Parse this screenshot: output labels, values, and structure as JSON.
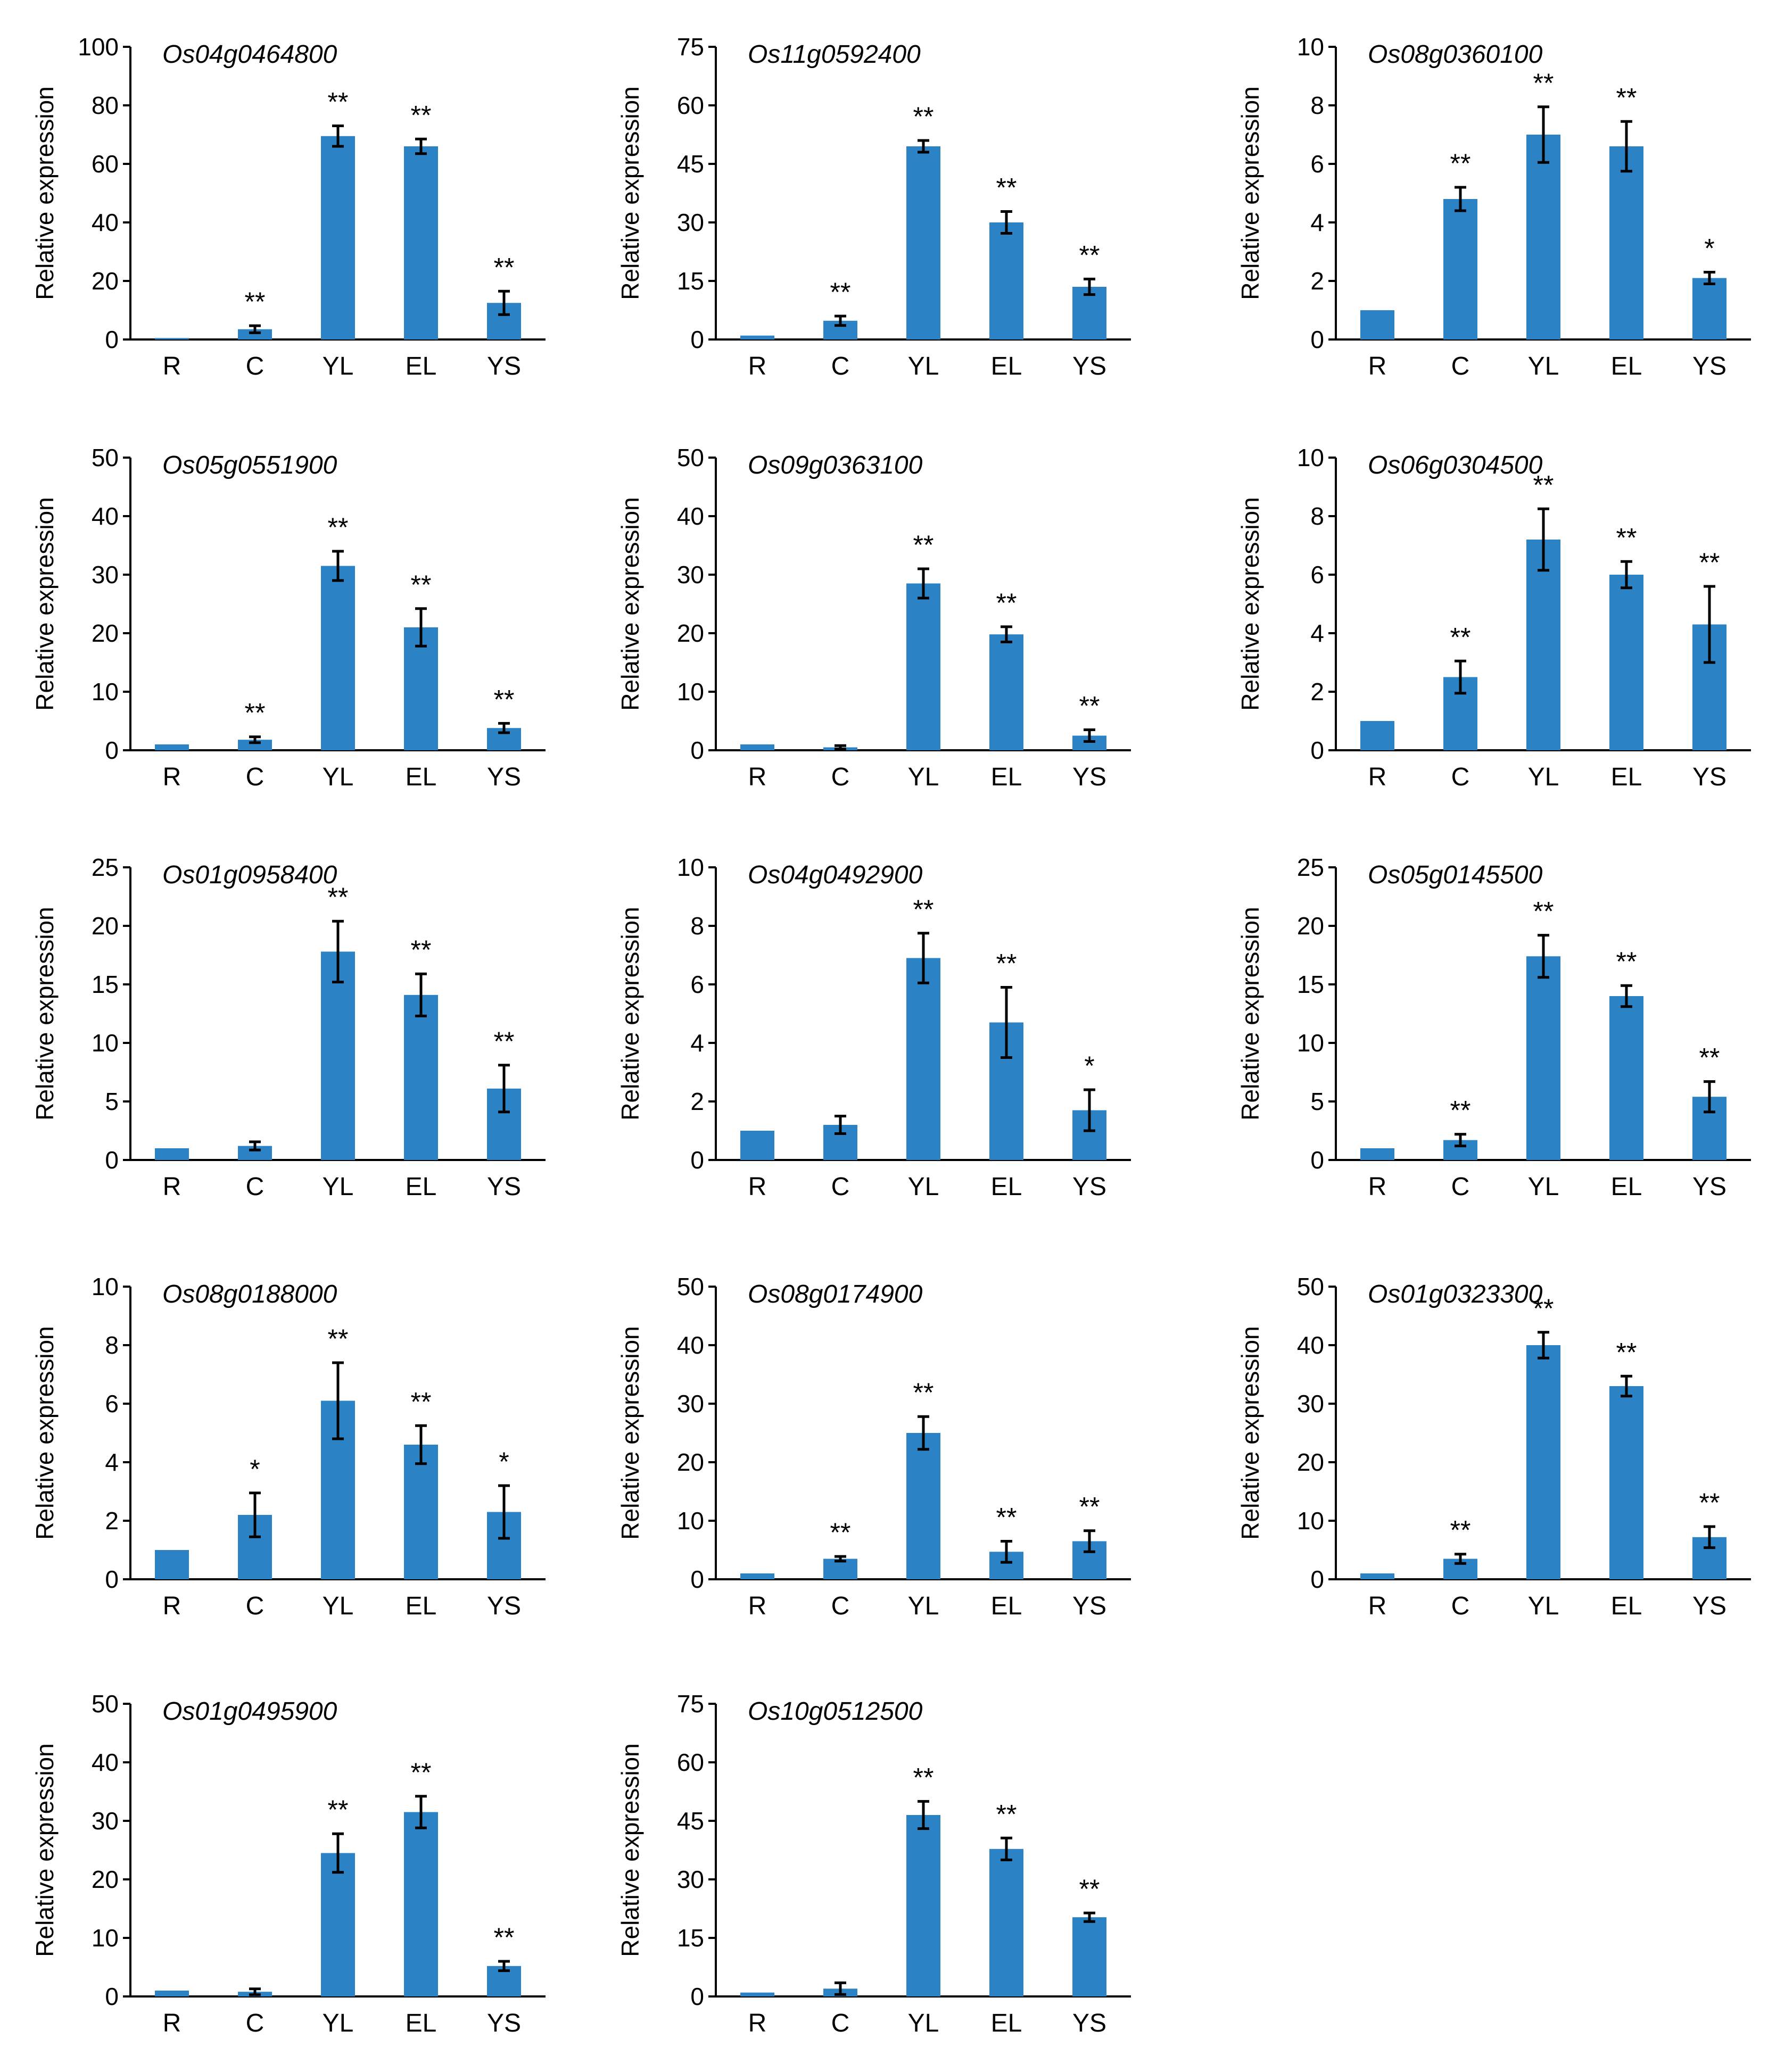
{
  "figure": {
    "y_axis_label": "Relative expression",
    "categories": [
      "R",
      "C",
      "YL",
      "EL",
      "YS"
    ],
    "bar_color": "#2b83c6",
    "axis_color": "#000000"
  },
  "chart_data": [
    {
      "type": "bar",
      "title": "Os04g0464800",
      "ylabel": "Relative expression",
      "categories": [
        "R",
        "C",
        "YL",
        "EL",
        "YS"
      ],
      "ylim": [
        0,
        100
      ],
      "yticks": [
        0,
        20,
        40,
        60,
        80,
        100
      ],
      "values": [
        0.5,
        3.5,
        69.5,
        66,
        12.5
      ],
      "errors": [
        0,
        1.2,
        3.5,
        2.5,
        4
      ],
      "significance": [
        "",
        "**",
        "**",
        "**",
        "**"
      ]
    },
    {
      "type": "bar",
      "title": "Os11g0592400",
      "ylabel": "Relative expression",
      "categories": [
        "R",
        "C",
        "YL",
        "EL",
        "YS"
      ],
      "ylim": [
        0,
        75
      ],
      "yticks": [
        0,
        15,
        30,
        45,
        60,
        75
      ],
      "values": [
        1,
        4.8,
        49.5,
        30,
        13.5
      ],
      "errors": [
        0,
        1.2,
        1.5,
        2.8,
        2
      ],
      "significance": [
        "",
        "**",
        "**",
        "**",
        "**"
      ]
    },
    {
      "type": "bar",
      "title": "Os08g0360100",
      "ylabel": "Relative expression",
      "categories": [
        "R",
        "C",
        "YL",
        "EL",
        "YS"
      ],
      "ylim": [
        0,
        10
      ],
      "yticks": [
        0,
        2,
        4,
        6,
        8,
        10
      ],
      "values": [
        1,
        4.8,
        7,
        6.6,
        2.1
      ],
      "errors": [
        0,
        0.4,
        0.95,
        0.85,
        0.2
      ],
      "significance": [
        "",
        "**",
        "**",
        "**",
        "*"
      ]
    },
    {
      "type": "bar",
      "title": "Os05g0551900",
      "ylabel": "Relative expression",
      "categories": [
        "R",
        "C",
        "YL",
        "EL",
        "YS"
      ],
      "ylim": [
        0,
        50
      ],
      "yticks": [
        0,
        10,
        20,
        30,
        40,
        50
      ],
      "values": [
        1,
        1.8,
        31.5,
        21,
        3.8
      ],
      "errors": [
        0,
        0.5,
        2.5,
        3.2,
        0.8
      ],
      "significance": [
        "",
        "**",
        "**",
        "**",
        "**"
      ]
    },
    {
      "type": "bar",
      "title": "Os09g0363100",
      "ylabel": "Relative expression",
      "categories": [
        "R",
        "C",
        "YL",
        "EL",
        "YS"
      ],
      "ylim": [
        0,
        50
      ],
      "yticks": [
        0,
        10,
        20,
        30,
        40,
        50
      ],
      "values": [
        1,
        0.5,
        28.5,
        19.8,
        2.5
      ],
      "errors": [
        0,
        0.3,
        2.5,
        1.3,
        1
      ],
      "significance": [
        "",
        "",
        "**",
        "**",
        "**"
      ]
    },
    {
      "type": "bar",
      "title": "Os06g0304500",
      "ylabel": "Relative expression",
      "categories": [
        "R",
        "C",
        "YL",
        "EL",
        "YS"
      ],
      "ylim": [
        0,
        10
      ],
      "yticks": [
        0,
        2,
        4,
        6,
        8,
        10
      ],
      "values": [
        1,
        2.5,
        7.2,
        6,
        4.3
      ],
      "errors": [
        0,
        0.55,
        1.05,
        0.45,
        1.3
      ],
      "significance": [
        "",
        "**",
        "**",
        "**",
        "**"
      ]
    },
    {
      "type": "bar",
      "title": "Os01g0958400",
      "ylabel": "Relative expression",
      "categories": [
        "R",
        "C",
        "YL",
        "EL",
        "YS"
      ],
      "ylim": [
        0,
        25
      ],
      "yticks": [
        0,
        5,
        10,
        15,
        20,
        25
      ],
      "values": [
        1,
        1.2,
        17.8,
        14.1,
        6.1
      ],
      "errors": [
        0,
        0.35,
        2.6,
        1.8,
        2
      ],
      "significance": [
        "",
        "",
        "**",
        "**",
        "**"
      ]
    },
    {
      "type": "bar",
      "title": "Os04g0492900",
      "ylabel": "Relative expression",
      "categories": [
        "R",
        "C",
        "YL",
        "EL",
        "YS"
      ],
      "ylim": [
        0,
        10
      ],
      "yticks": [
        0,
        2,
        4,
        6,
        8,
        10
      ],
      "values": [
        1,
        1.2,
        6.9,
        4.7,
        1.7
      ],
      "errors": [
        0,
        0.3,
        0.85,
        1.2,
        0.7
      ],
      "significance": [
        "",
        "",
        "**",
        "**",
        "*"
      ]
    },
    {
      "type": "bar",
      "title": "Os05g0145500",
      "ylabel": "Relative expression",
      "categories": [
        "R",
        "C",
        "YL",
        "EL",
        "YS"
      ],
      "ylim": [
        0,
        25
      ],
      "yticks": [
        0,
        5,
        10,
        15,
        20,
        25
      ],
      "values": [
        1,
        1.7,
        17.4,
        14,
        5.4
      ],
      "errors": [
        0,
        0.5,
        1.8,
        0.9,
        1.3
      ],
      "significance": [
        "",
        "**",
        "**",
        "**",
        "**"
      ]
    },
    {
      "type": "bar",
      "title": "Os08g0188000",
      "ylabel": "Relative expression",
      "categories": [
        "R",
        "C",
        "YL",
        "EL",
        "YS"
      ],
      "ylim": [
        0,
        10
      ],
      "yticks": [
        0,
        2,
        4,
        6,
        8,
        10
      ],
      "values": [
        1,
        2.2,
        6.1,
        4.6,
        2.3
      ],
      "errors": [
        0,
        0.75,
        1.3,
        0.65,
        0.9
      ],
      "significance": [
        "",
        "*",
        "**",
        "**",
        "*"
      ]
    },
    {
      "type": "bar",
      "title": "Os08g0174900",
      "ylabel": "Relative expression",
      "categories": [
        "R",
        "C",
        "YL",
        "EL",
        "YS"
      ],
      "ylim": [
        0,
        50
      ],
      "yticks": [
        0,
        10,
        20,
        30,
        40,
        50
      ],
      "values": [
        1,
        3.5,
        25,
        4.7,
        6.5
      ],
      "errors": [
        0,
        0.4,
        2.8,
        1.8,
        1.8
      ],
      "significance": [
        "",
        "**",
        "**",
        "**",
        "**"
      ]
    },
    {
      "type": "bar",
      "title": "Os01g0323300",
      "ylabel": "Relative expression",
      "categories": [
        "R",
        "C",
        "YL",
        "EL",
        "YS"
      ],
      "ylim": [
        0,
        50
      ],
      "yticks": [
        0,
        10,
        20,
        30,
        40,
        50
      ],
      "values": [
        1,
        3.5,
        40,
        33,
        7.2
      ],
      "errors": [
        0,
        0.8,
        2.2,
        1.7,
        1.8
      ],
      "significance": [
        "",
        "**",
        "**",
        "**",
        "**"
      ]
    },
    {
      "type": "bar",
      "title": "Os01g0495900",
      "ylabel": "Relative expression",
      "categories": [
        "R",
        "C",
        "YL",
        "EL",
        "YS"
      ],
      "ylim": [
        0,
        50
      ],
      "yticks": [
        0,
        10,
        20,
        30,
        40,
        50
      ],
      "values": [
        1,
        0.8,
        24.5,
        31.5,
        5.2
      ],
      "errors": [
        0,
        0.5,
        3.3,
        2.7,
        0.8
      ],
      "significance": [
        "",
        "",
        "**",
        "**",
        "**"
      ]
    },
    {
      "type": "bar",
      "title": "Os10g0512500",
      "ylabel": "Relative expression",
      "categories": [
        "R",
        "C",
        "YL",
        "EL",
        "YS"
      ],
      "ylim": [
        0,
        75
      ],
      "yticks": [
        0,
        15,
        30,
        45,
        60,
        75
      ],
      "values": [
        1,
        2,
        46.5,
        37.8,
        20.3
      ],
      "errors": [
        0,
        1.5,
        3.5,
        2.8,
        1.1
      ],
      "significance": [
        "",
        "",
        "**",
        "**",
        "**"
      ]
    }
  ]
}
